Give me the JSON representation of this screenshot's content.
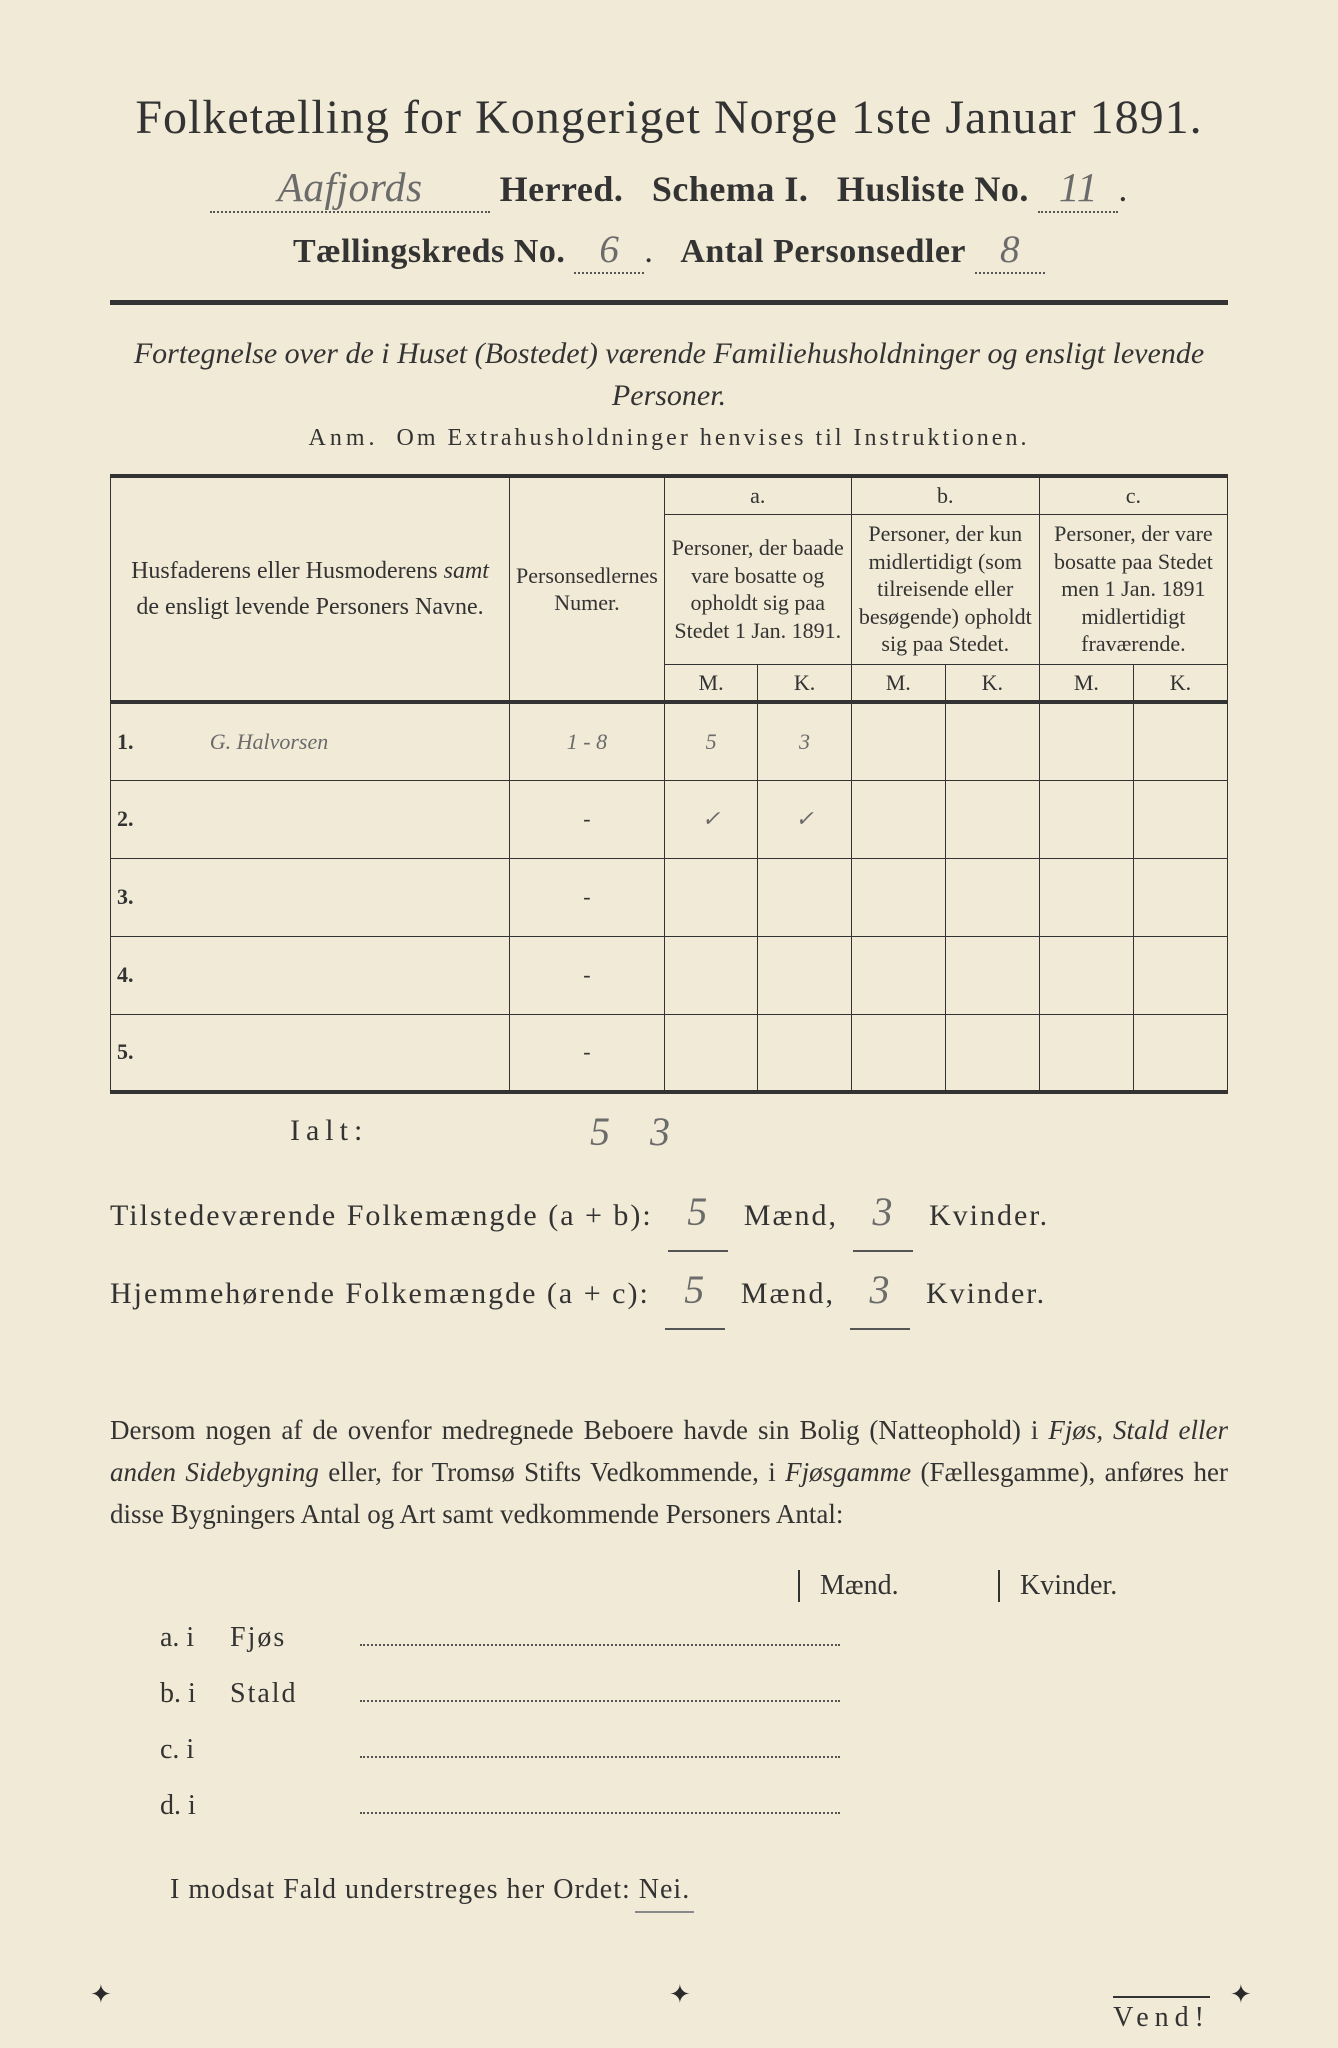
{
  "colors": {
    "paper": "#f0ead6",
    "ink": "#333333",
    "pencil": "#6b6b6b"
  },
  "title": "Folketælling for Kongeriget Norge 1ste Januar 1891.",
  "header": {
    "herred_value": "Aafjords",
    "herred_label": "Herred.",
    "schema_label": "Schema I.",
    "husliste_label": "Husliste No.",
    "husliste_value": "11",
    "kreds_label": "Tællingskreds No.",
    "kreds_value": "6",
    "sedler_label": "Antal Personsedler",
    "sedler_value": "8"
  },
  "subtitle": "Fortegnelse over de i Huset (Bostedet) værende Familiehusholdninger og ensligt levende Personer.",
  "anm_label": "Anm.",
  "anm_text": "Om Extrahusholdninger henvises til Instruktionen.",
  "columns": {
    "names": "Husfaderens eller Husmoderens samt de ensligt levende Personers Navne.",
    "numer": "Personsedlernes Numer.",
    "a_label": "a.",
    "a_text": "Personer, der baade vare bosatte og opholdt sig paa Stedet 1 Jan. 1891.",
    "b_label": "b.",
    "b_text": "Personer, der kun midlertidigt (som tilreisende eller besøgende) opholdt sig paa Stedet.",
    "c_label": "c.",
    "c_text": "Personer, der vare bosatte paa Stedet men 1 Jan. 1891 midlertidigt fraværende.",
    "m": "M.",
    "k": "K."
  },
  "rows": [
    {
      "n": "1.",
      "name": "G. Halvorsen",
      "num": "1 - 8",
      "a_m": "5",
      "a_k": "3",
      "b_m": "",
      "b_k": "",
      "c_m": "",
      "c_k": ""
    },
    {
      "n": "2.",
      "name": "",
      "num": "-",
      "a_m": "✓",
      "a_k": "✓",
      "b_m": "",
      "b_k": "",
      "c_m": "",
      "c_k": ""
    },
    {
      "n": "3.",
      "name": "",
      "num": "-",
      "a_m": "",
      "a_k": "",
      "b_m": "",
      "b_k": "",
      "c_m": "",
      "c_k": ""
    },
    {
      "n": "4.",
      "name": "",
      "num": "-",
      "a_m": "",
      "a_k": "",
      "b_m": "",
      "b_k": "",
      "c_m": "",
      "c_k": ""
    },
    {
      "n": "5.",
      "name": "",
      "num": "-",
      "a_m": "",
      "a_k": "",
      "b_m": "",
      "b_k": "",
      "c_m": "",
      "c_k": ""
    }
  ],
  "ialt": {
    "label": "Ialt:",
    "m": "5",
    "k": "3"
  },
  "summary": {
    "line1_a": "Tilstedeværende Folkemængde (a + b):",
    "line1_m": "5",
    "line1_mid": "Mænd,",
    "line1_k": "3",
    "line1_end": "Kvinder.",
    "line2_a": "Hjemmehørende Folkemængde (a + c):",
    "line2_m": "5",
    "line2_mid": "Mænd,",
    "line2_k": "3",
    "line2_end": "Kvinder."
  },
  "para": "Dersom nogen af de ovenfor medregnede Beboere havde sin Bolig (Natteophold) i Fjøs, Stald eller anden Sidebygning eller, for Tromsø Stifts Vedkommende, i Fjøsgamme (Fællesgamme), anføres her disse Bygningers Antal og Art samt vedkommende Personers Antal:",
  "mk_header": {
    "m": "Mænd.",
    "k": "Kvinder."
  },
  "buildings": [
    {
      "lbl": "a.  i",
      "loc": "Fjøs"
    },
    {
      "lbl": "b.  i",
      "loc": "Stald"
    },
    {
      "lbl": "c.  i",
      "loc": ""
    },
    {
      "lbl": "d.  i",
      "loc": ""
    }
  ],
  "nei_line_a": "I modsat Fald understreges her Ordet:",
  "nei_line_b": "Nei.",
  "vend": "Vend!"
}
